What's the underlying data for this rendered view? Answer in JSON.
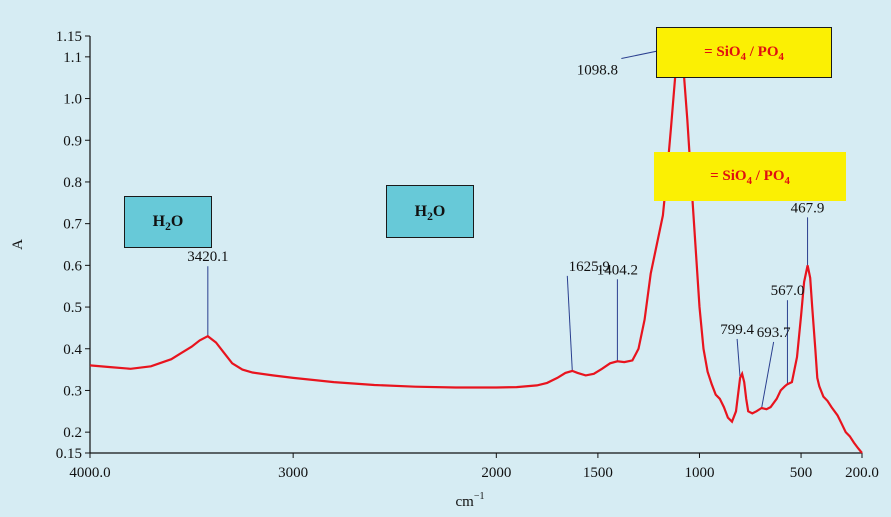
{
  "chart_data": {
    "type": "line",
    "xlabel": "cm",
    "xlabel_superscript": "−1",
    "ylabel": "A",
    "x_reversed": true,
    "xlim": [
      4000,
      200
    ],
    "ylim": [
      0.15,
      1.15
    ],
    "x_ticks": [
      "4000.0",
      "3000",
      "2000",
      "1500",
      "1000",
      "500",
      "200.0"
    ],
    "x_tick_values": [
      4000,
      3000,
      2000,
      1500,
      1000,
      500,
      200
    ],
    "y_ticks": [
      "0.15",
      "0.2",
      "0.3",
      "0.4",
      "0.5",
      "0.6",
      "0.7",
      "0.8",
      "0.9",
      "1.0",
      "1.1",
      "1.15"
    ],
    "y_tick_values": [
      0.15,
      0.2,
      0.3,
      0.4,
      0.5,
      0.6,
      0.7,
      0.8,
      0.9,
      1.0,
      1.1,
      1.15
    ],
    "series": [
      {
        "color": "#e8141e",
        "x": [
          4000,
          3900,
          3800,
          3700,
          3600,
          3550,
          3500,
          3460,
          3420,
          3380,
          3340,
          3300,
          3250,
          3200,
          3100,
          3000,
          2800,
          2600,
          2400,
          2200,
          2000,
          1900,
          1800,
          1750,
          1700,
          1660,
          1626,
          1600,
          1560,
          1520,
          1480,
          1440,
          1404,
          1370,
          1330,
          1300,
          1270,
          1240,
          1210,
          1180,
          1160,
          1140,
          1120,
          1099,
          1080,
          1060,
          1040,
          1020,
          1000,
          980,
          960,
          940,
          920,
          900,
          880,
          860,
          840,
          820,
          800,
          790,
          780,
          770,
          760,
          740,
          720,
          694,
          670,
          650,
          620,
          600,
          580,
          567,
          545,
          520,
          500,
          485,
          468,
          455,
          445,
          430,
          420,
          410,
          390,
          370,
          350,
          320,
          300,
          280,
          260,
          240,
          220,
          200
        ],
        "y": [
          0.36,
          0.356,
          0.352,
          0.358,
          0.375,
          0.39,
          0.405,
          0.42,
          0.43,
          0.415,
          0.39,
          0.365,
          0.35,
          0.343,
          0.336,
          0.33,
          0.32,
          0.313,
          0.309,
          0.307,
          0.307,
          0.308,
          0.312,
          0.318,
          0.33,
          0.342,
          0.347,
          0.342,
          0.336,
          0.34,
          0.352,
          0.365,
          0.37,
          0.368,
          0.372,
          0.4,
          0.47,
          0.58,
          0.65,
          0.72,
          0.82,
          0.93,
          1.05,
          1.12,
          1.08,
          0.95,
          0.8,
          0.65,
          0.5,
          0.4,
          0.345,
          0.315,
          0.29,
          0.28,
          0.26,
          0.235,
          0.225,
          0.25,
          0.33,
          0.34,
          0.32,
          0.28,
          0.25,
          0.245,
          0.25,
          0.258,
          0.255,
          0.26,
          0.28,
          0.3,
          0.31,
          0.315,
          0.32,
          0.38,
          0.48,
          0.56,
          0.6,
          0.57,
          0.5,
          0.4,
          0.33,
          0.31,
          0.285,
          0.275,
          0.26,
          0.24,
          0.22,
          0.2,
          0.19,
          0.175,
          0.162,
          0.15
        ]
      }
    ],
    "peaks": [
      {
        "label": "3420.1",
        "x": 3420,
        "y": 0.43
      },
      {
        "label": "1625.9",
        "x": 1626,
        "y": 0.347
      },
      {
        "label": "1404.2",
        "x": 1404,
        "y": 0.37
      },
      {
        "label": "1098.8",
        "x": 1099,
        "y": 1.12
      },
      {
        "label": "799.4",
        "x": 800,
        "y": 0.33
      },
      {
        "label": "693.7",
        "x": 694,
        "y": 0.258
      },
      {
        "label": "567.0",
        "x": 567,
        "y": 0.315
      },
      {
        "label": "467.9",
        "x": 468,
        "y": 0.6
      }
    ],
    "annotations": [
      {
        "text": "H",
        "sub": "2",
        "rest": "O",
        "style": "h2o"
      },
      {
        "text": "H",
        "sub": "2",
        "rest": "O",
        "style": "h2o"
      },
      {
        "text": "= SiO",
        "sub": "4",
        "rest": " / PO",
        "sub2": "4",
        "style": "sio"
      },
      {
        "text": "= SiO",
        "sub": "4",
        "rest": " / PO",
        "sub2": "4",
        "style": "sio"
      }
    ]
  }
}
